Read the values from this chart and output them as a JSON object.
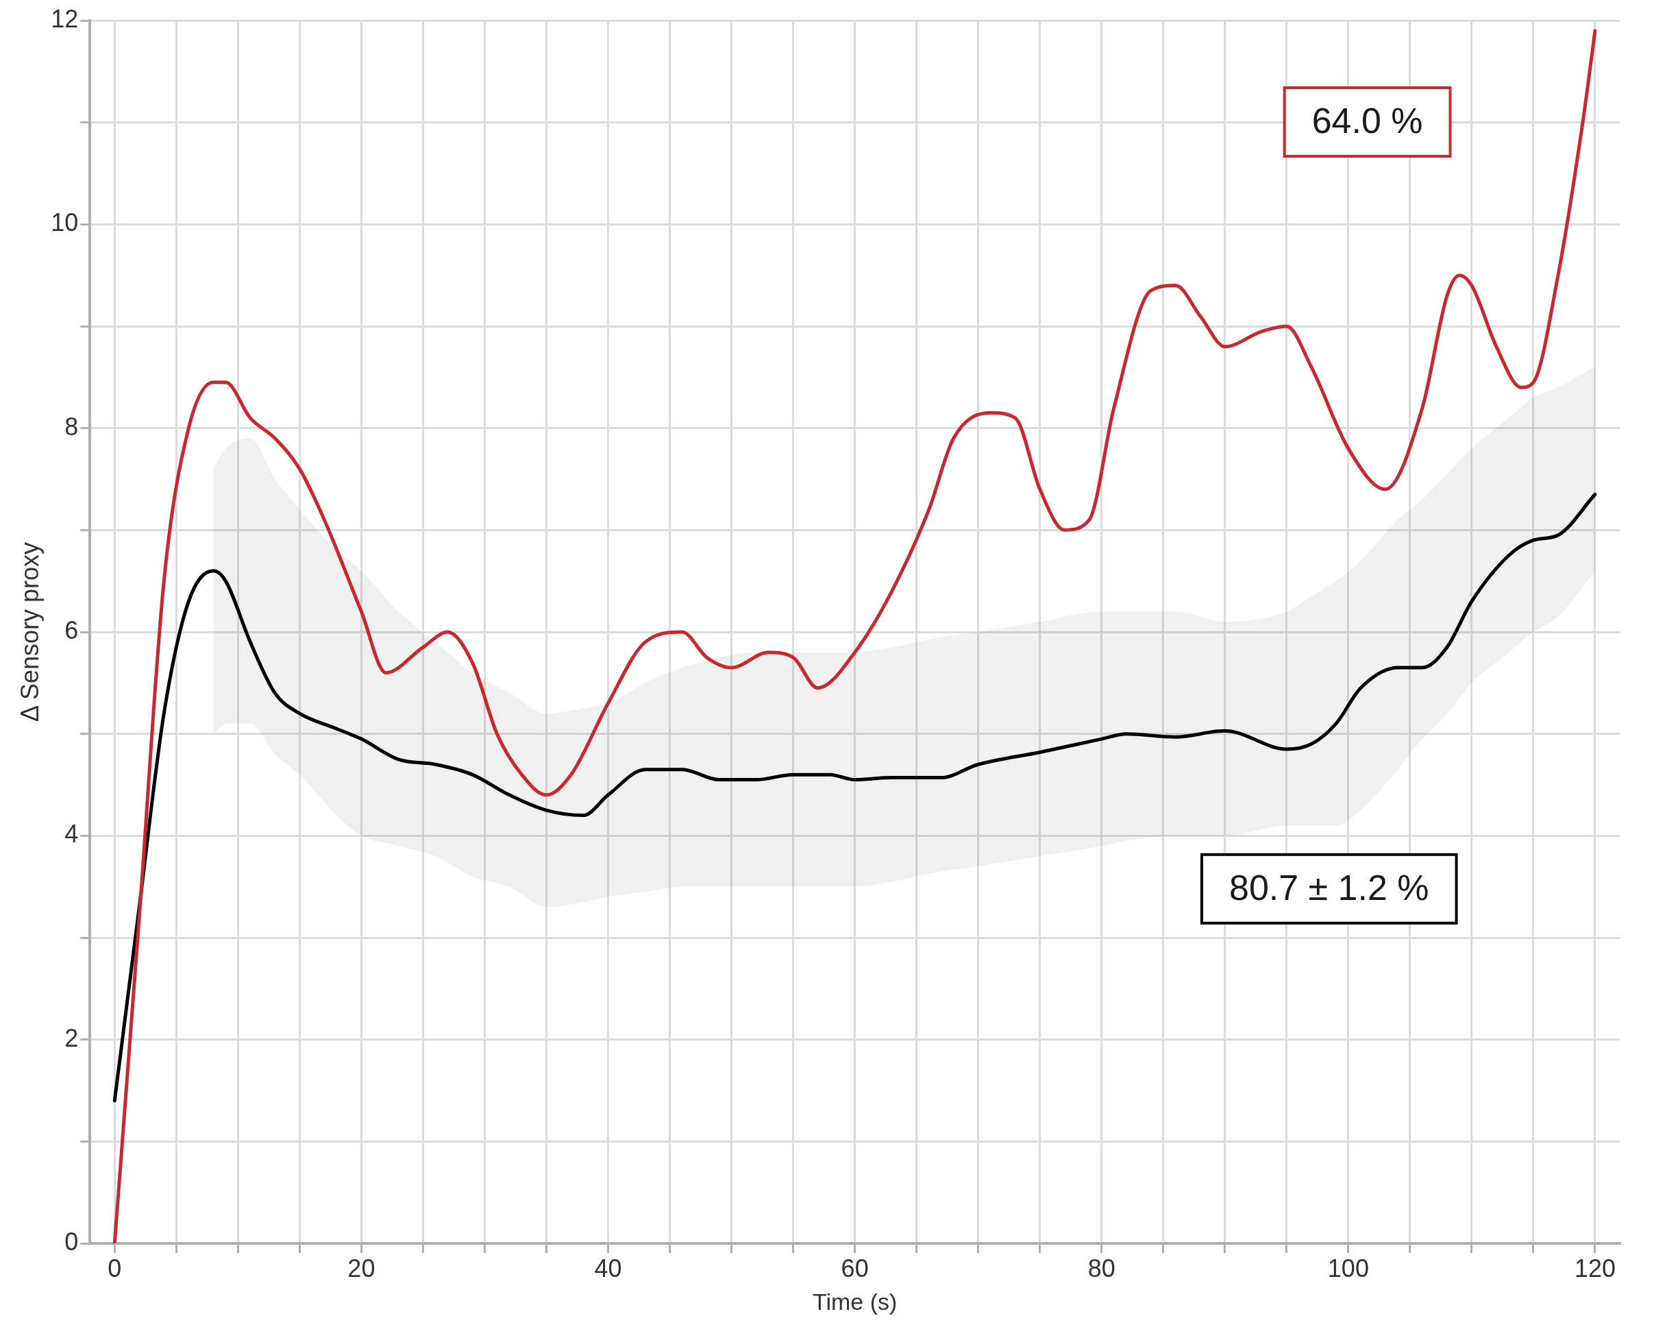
{
  "chart_data": {
    "type": "line",
    "xlabel": "Time (s)",
    "ylabel": "Δ Sensory proxy",
    "xlim": [
      -2,
      122
    ],
    "ylim": [
      0,
      12
    ],
    "xticks": [
      0,
      {
        "value": 5,
        "label": null
      },
      {
        "value": 10,
        "label": null
      },
      {
        "value": 15,
        "label": null
      },
      20,
      {
        "value": 25,
        "label": null
      },
      {
        "value": 30,
        "label": null
      },
      {
        "value": 35,
        "label": null
      },
      40,
      {
        "value": 45,
        "label": null
      },
      {
        "value": 50,
        "label": null
      },
      {
        "value": 55,
        "label": null
      },
      60,
      {
        "value": 65,
        "label": null
      },
      {
        "value": 70,
        "label": null
      },
      {
        "value": 75,
        "label": null
      },
      80,
      {
        "value": 85,
        "label": null
      },
      {
        "value": 90,
        "label": null
      },
      {
        "value": 95,
        "label": null
      },
      100,
      {
        "value": 105,
        "label": null
      },
      {
        "value": 110,
        "label": null
      },
      {
        "value": 115,
        "label": null
      },
      120
    ],
    "yticks": [
      0,
      {
        "value": 1,
        "label": null
      },
      2,
      {
        "value": 3,
        "label": null
      },
      4,
      {
        "value": 5,
        "label": null
      },
      6,
      {
        "value": 7,
        "label": null
      },
      8,
      {
        "value": 9,
        "label": null
      },
      10,
      {
        "value": 11,
        "label": null
      },
      12
    ],
    "grid": true,
    "legend": false,
    "marker": "none",
    "line_style": "solid",
    "annotations": [
      "64.0 %",
      "80.7 ± 1.2 %"
    ],
    "series": [
      {
        "color": "#c8282e",
        "x": [
          0,
          2,
          4,
          6,
          8,
          9,
          11,
          13,
          15,
          17,
          20,
          22,
          25,
          27,
          29,
          31,
          33,
          35,
          37,
          40,
          43,
          46,
          48,
          50,
          53,
          55,
          57,
          60,
          63,
          66,
          68,
          71,
          73,
          75,
          77,
          79,
          81,
          84,
          86,
          88,
          90,
          93,
          95,
          97,
          100,
          103,
          106,
          108,
          109,
          110,
          112,
          114,
          115,
          117,
          119,
          120
        ],
        "values": [
          0,
          3.2,
          6.5,
          8.0,
          8.45,
          8.45,
          8.1,
          7.9,
          7.6,
          7.1,
          6.2,
          5.6,
          5.85,
          6.0,
          5.7,
          5.0,
          4.6,
          4.4,
          4.6,
          5.3,
          5.9,
          6.0,
          5.75,
          5.65,
          5.8,
          5.75,
          5.45,
          5.8,
          6.4,
          7.2,
          7.9,
          8.15,
          8.1,
          7.4,
          7.0,
          7.1,
          8.2,
          9.35,
          9.4,
          9.1,
          8.8,
          8.95,
          9.0,
          8.6,
          7.8,
          7.4,
          8.2,
          9.3,
          9.5,
          9.4,
          8.8,
          8.4,
          8.45,
          9.5,
          11.0,
          11.9
        ]
      },
      {
        "color": "#000000",
        "x": [
          0,
          2,
          4,
          6,
          8,
          9,
          11,
          13,
          15,
          18,
          20,
          23,
          26,
          29,
          32,
          35,
          38,
          40,
          43,
          46,
          49,
          52,
          55,
          58,
          60,
          63,
          67,
          70,
          75,
          80,
          82,
          86,
          90,
          95,
          97,
          99,
          101,
          104,
          106,
          108,
          110,
          113,
          115,
          117,
          120
        ],
        "values": [
          1.4,
          3.3,
          5.2,
          6.3,
          6.6,
          6.5,
          5.9,
          5.4,
          5.2,
          5.05,
          4.95,
          4.75,
          4.7,
          4.6,
          4.4,
          4.25,
          4.2,
          4.4,
          4.65,
          4.65,
          4.55,
          4.55,
          4.6,
          4.6,
          4.55,
          4.57,
          4.57,
          4.7,
          4.82,
          4.95,
          5.0,
          4.97,
          5.03,
          4.85,
          4.9,
          5.1,
          5.45,
          5.65,
          5.65,
          5.85,
          6.3,
          6.75,
          6.9,
          6.95,
          7.35
        ],
        "lower": [
          null,
          null,
          null,
          null,
          5.0,
          5.1,
          5.1,
          4.8,
          4.6,
          4.2,
          4.0,
          3.9,
          3.8,
          3.6,
          3.5,
          3.3,
          3.35,
          3.4,
          3.45,
          3.5,
          3.5,
          3.5,
          3.5,
          3.5,
          3.5,
          3.55,
          3.65,
          3.7,
          3.8,
          3.9,
          3.95,
          4.0,
          4.0,
          4.1,
          4.1,
          4.1,
          4.25,
          4.65,
          4.95,
          5.2,
          5.5,
          5.8,
          6.0,
          6.15,
          6.6
        ],
        "upper": [
          null,
          null,
          null,
          null,
          7.6,
          7.8,
          7.9,
          7.5,
          7.2,
          6.8,
          6.6,
          6.2,
          5.9,
          5.6,
          5.4,
          5.2,
          5.25,
          5.3,
          5.5,
          5.65,
          5.75,
          5.8,
          5.8,
          5.8,
          5.8,
          5.85,
          5.95,
          6.0,
          6.1,
          6.2,
          6.2,
          6.2,
          6.1,
          6.2,
          6.35,
          6.5,
          6.7,
          7.1,
          7.3,
          7.55,
          7.8,
          8.1,
          8.3,
          8.4,
          8.6
        ]
      }
    ]
  }
}
